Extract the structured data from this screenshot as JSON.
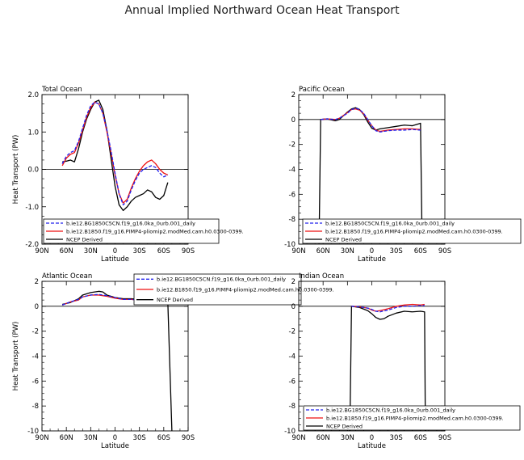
{
  "title": "Annual Implied Northward Ocean Heat Transport",
  "chart_data": [
    {
      "type": "line",
      "title": "Total Ocean",
      "xlabel": "Latitude",
      "ylabel": "Heat Transport (PW)",
      "x_ticks": [
        "90N",
        "60N",
        "30N",
        "0",
        "30S",
        "60S",
        "90S"
      ],
      "y_ticks": [
        "2.0",
        "1.0",
        "0.0",
        "-1.0",
        "-2.0"
      ],
      "xlim": [
        90,
        -90
      ],
      "ylim": [
        -2,
        2
      ],
      "legend": [
        "b.ie12.BG1850C5CN.f19_g16.0ka_0urb.001_daily",
        "b.ie12.B1850.f19_g16.PIMP4-pliomip2.modMed.cam.h0.0300-0399.",
        "NCEP Derived"
      ],
      "legend_position": "bottom",
      "series": [
        {
          "color": "#2222ee",
          "dash": true,
          "points": [
            [
              65,
              0.15
            ],
            [
              60,
              0.35
            ],
            [
              55,
              0.45
            ],
            [
              50,
              0.5
            ],
            [
              45,
              0.75
            ],
            [
              40,
              1.1
            ],
            [
              35,
              1.45
            ],
            [
              30,
              1.7
            ],
            [
              25,
              1.8
            ],
            [
              20,
              1.75
            ],
            [
              15,
              1.5
            ],
            [
              10,
              1.05
            ],
            [
              5,
              0.5
            ],
            [
              0,
              -0.1
            ],
            [
              -5,
              -0.65
            ],
            [
              -10,
              -0.95
            ],
            [
              -15,
              -0.85
            ],
            [
              -20,
              -0.55
            ],
            [
              -25,
              -0.3
            ],
            [
              -30,
              -0.1
            ],
            [
              -35,
              0.0
            ],
            [
              -40,
              0.05
            ],
            [
              -45,
              0.1
            ],
            [
              -50,
              0.05
            ],
            [
              -55,
              -0.1
            ],
            [
              -60,
              -0.2
            ],
            [
              -65,
              -0.15
            ]
          ]
        },
        {
          "color": "#ee1111",
          "dash": false,
          "points": [
            [
              65,
              0.1
            ],
            [
              60,
              0.3
            ],
            [
              55,
              0.4
            ],
            [
              50,
              0.45
            ],
            [
              45,
              0.7
            ],
            [
              40,
              1.05
            ],
            [
              35,
              1.4
            ],
            [
              30,
              1.65
            ],
            [
              25,
              1.8
            ],
            [
              20,
              1.75
            ],
            [
              15,
              1.5
            ],
            [
              10,
              1.0
            ],
            [
              5,
              0.45
            ],
            [
              0,
              -0.15
            ],
            [
              -5,
              -0.65
            ],
            [
              -10,
              -0.9
            ],
            [
              -15,
              -0.8
            ],
            [
              -20,
              -0.5
            ],
            [
              -25,
              -0.25
            ],
            [
              -30,
              -0.05
            ],
            [
              -35,
              0.1
            ],
            [
              -40,
              0.2
            ],
            [
              -45,
              0.25
            ],
            [
              -50,
              0.15
            ],
            [
              -55,
              0.0
            ],
            [
              -60,
              -0.1
            ],
            [
              -65,
              -0.15
            ]
          ]
        },
        {
          "color": "#000000",
          "dash": false,
          "points": [
            [
              65,
              0.2
            ],
            [
              60,
              0.22
            ],
            [
              55,
              0.25
            ],
            [
              50,
              0.2
            ],
            [
              45,
              0.55
            ],
            [
              40,
              1.0
            ],
            [
              35,
              1.35
            ],
            [
              30,
              1.6
            ],
            [
              25,
              1.8
            ],
            [
              20,
              1.85
            ],
            [
              15,
              1.6
            ],
            [
              10,
              1.05
            ],
            [
              5,
              0.3
            ],
            [
              0,
              -0.45
            ],
            [
              -5,
              -0.95
            ],
            [
              -10,
              -1.1
            ],
            [
              -15,
              -1.0
            ],
            [
              -20,
              -0.85
            ],
            [
              -25,
              -0.75
            ],
            [
              -30,
              -0.7
            ],
            [
              -35,
              -0.65
            ],
            [
              -40,
              -0.55
            ],
            [
              -45,
              -0.6
            ],
            [
              -50,
              -0.75
            ],
            [
              -55,
              -0.8
            ],
            [
              -60,
              -0.7
            ],
            [
              -65,
              -0.35
            ]
          ]
        }
      ]
    },
    {
      "type": "line",
      "title": "Pacific Ocean",
      "xlabel": "Latitude",
      "ylabel": "",
      "x_ticks": [
        "90N",
        "60N",
        "30N",
        "0",
        "30S",
        "60S",
        "90S"
      ],
      "y_ticks": [
        "2",
        "0",
        "-2",
        "-4",
        "-6",
        "-8",
        "-10"
      ],
      "xlim": [
        90,
        -90
      ],
      "ylim": [
        -10,
        2
      ],
      "legend": [
        "b.ie12.BG1850C5CN.f19_g16.0ka_0urb.001_daily",
        "b.ie12.B1850.f19_g16.PIMP4-pliomip2.modMed.cam.h0.0300-0399.",
        "NCEP Derived"
      ],
      "legend_position": "bottom",
      "series": [
        {
          "color": "#2222ee",
          "dash": true,
          "points": [
            [
              63,
              0.0
            ],
            [
              55,
              0.05
            ],
            [
              45,
              0.0
            ],
            [
              40,
              0.1
            ],
            [
              30,
              0.5
            ],
            [
              25,
              0.8
            ],
            [
              20,
              0.9
            ],
            [
              15,
              0.8
            ],
            [
              10,
              0.5
            ],
            [
              5,
              0.0
            ],
            [
              0,
              -0.5
            ],
            [
              -5,
              -0.9
            ],
            [
              -10,
              -1.0
            ],
            [
              -20,
              -0.9
            ],
            [
              -30,
              -0.85
            ],
            [
              -40,
              -0.85
            ],
            [
              -50,
              -0.8
            ],
            [
              -60,
              -0.85
            ]
          ]
        },
        {
          "color": "#ee1111",
          "dash": false,
          "points": [
            [
              63,
              0.0
            ],
            [
              55,
              0.05
            ],
            [
              45,
              0.0
            ],
            [
              40,
              0.1
            ],
            [
              30,
              0.55
            ],
            [
              25,
              0.8
            ],
            [
              20,
              0.85
            ],
            [
              15,
              0.75
            ],
            [
              10,
              0.45
            ],
            [
              5,
              -0.05
            ],
            [
              0,
              -0.5
            ],
            [
              -5,
              -0.85
            ],
            [
              -10,
              -0.95
            ],
            [
              -20,
              -0.85
            ],
            [
              -30,
              -0.8
            ],
            [
              -40,
              -0.75
            ],
            [
              -50,
              -0.75
            ],
            [
              -60,
              -0.8
            ]
          ]
        },
        {
          "color": "#000000",
          "dash": false,
          "points": [
            [
              65,
              -10
            ],
            [
              63,
              0.0
            ],
            [
              55,
              0.05
            ],
            [
              45,
              -0.1
            ],
            [
              40,
              0.0
            ],
            [
              30,
              0.6
            ],
            [
              25,
              0.85
            ],
            [
              20,
              0.95
            ],
            [
              15,
              0.8
            ],
            [
              10,
              0.4
            ],
            [
              5,
              -0.2
            ],
            [
              0,
              -0.7
            ],
            [
              -5,
              -0.85
            ],
            [
              -10,
              -0.75
            ],
            [
              -20,
              -0.65
            ],
            [
              -30,
              -0.55
            ],
            [
              -40,
              -0.45
            ],
            [
              -50,
              -0.5
            ],
            [
              -60,
              -0.3
            ],
            [
              -62,
              -10
            ]
          ]
        }
      ]
    },
    {
      "type": "line",
      "title": "Atlantic Ocean",
      "xlabel": "Latitude",
      "ylabel": "Heat Transport (PW)",
      "x_ticks": [
        "90N",
        "60N",
        "30N",
        "0",
        "30S",
        "60S",
        "90S"
      ],
      "y_ticks": [
        "2",
        "0",
        "-2",
        "-4",
        "-6",
        "-8",
        "-10"
      ],
      "xlim": [
        90,
        -90
      ],
      "ylim": [
        -10,
        2
      ],
      "legend": [
        "b.ie12.BG1850C5CN.f19_g16.0ka_0urb.001_daily",
        "b.ie12.B1850.f19_g16.PIMP4-pliomip2.modMed.cam.h0.0300-0399.",
        "NCEP Derived"
      ],
      "legend_position": "top-right",
      "series": [
        {
          "color": "#2222ee",
          "dash": true,
          "points": [
            [
              65,
              0.1
            ],
            [
              55,
              0.35
            ],
            [
              45,
              0.55
            ],
            [
              40,
              0.75
            ],
            [
              30,
              0.9
            ],
            [
              20,
              0.95
            ],
            [
              10,
              0.85
            ],
            [
              0,
              0.7
            ],
            [
              -10,
              0.55
            ],
            [
              -20,
              0.55
            ],
            [
              -30,
              0.5
            ],
            [
              -40,
              0.45
            ],
            [
              -50,
              0.4
            ],
            [
              -60,
              0.35
            ],
            [
              -65,
              0.35
            ]
          ]
        },
        {
          "color": "#ee1111",
          "dash": false,
          "points": [
            [
              65,
              0.1
            ],
            [
              55,
              0.35
            ],
            [
              45,
              0.5
            ],
            [
              40,
              0.75
            ],
            [
              30,
              0.9
            ],
            [
              20,
              0.9
            ],
            [
              10,
              0.8
            ],
            [
              0,
              0.65
            ],
            [
              -10,
              0.55
            ],
            [
              -20,
              0.55
            ],
            [
              -30,
              0.5
            ],
            [
              -40,
              0.45
            ],
            [
              -50,
              0.4
            ],
            [
              -60,
              0.35
            ],
            [
              -65,
              0.3
            ]
          ]
        },
        {
          "color": "#000000",
          "dash": false,
          "points": [
            [
              65,
              0.15
            ],
            [
              55,
              0.3
            ],
            [
              45,
              0.6
            ],
            [
              40,
              0.9
            ],
            [
              30,
              1.1
            ],
            [
              20,
              1.2
            ],
            [
              15,
              1.15
            ],
            [
              10,
              0.9
            ],
            [
              0,
              0.7
            ],
            [
              -10,
              0.6
            ],
            [
              -20,
              0.6
            ],
            [
              -30,
              0.55
            ],
            [
              -40,
              0.45
            ],
            [
              -50,
              0.35
            ],
            [
              -60,
              0.3
            ],
            [
              -65,
              0.3
            ],
            [
              -70,
              -10
            ]
          ]
        }
      ]
    },
    {
      "type": "line",
      "title": "Indian Ocean",
      "xlabel": "Latitude",
      "ylabel": "",
      "x_ticks": [
        "90N",
        "60N",
        "30N",
        "0",
        "30S",
        "60S",
        "90S"
      ],
      "y_ticks": [
        "2",
        "0",
        "-2",
        "-4",
        "-6",
        "-8",
        "-10"
      ],
      "xlim": [
        90,
        -90
      ],
      "ylim": [
        -10,
        2
      ],
      "legend": [
        "b.ie12.BG1850C5CN.f19_g16.0ka_0urb.001_daily",
        "b.ie12.B1850.f19_g16.PIMP4-pliomip2.modMed.cam.h0.0300-0399.",
        "NCEP Derived"
      ],
      "legend_position": "bottom-right",
      "series": [
        {
          "color": "#2222ee",
          "dash": true,
          "points": [
            [
              25,
              0.0
            ],
            [
              15,
              -0.05
            ],
            [
              5,
              -0.15
            ],
            [
              0,
              -0.25
            ],
            [
              -5,
              -0.4
            ],
            [
              -10,
              -0.45
            ],
            [
              -20,
              -0.3
            ],
            [
              -30,
              -0.1
            ],
            [
              -40,
              0.0
            ],
            [
              -50,
              0.0
            ],
            [
              -60,
              0.05
            ],
            [
              -65,
              0.05
            ]
          ]
        },
        {
          "color": "#ee1111",
          "dash": false,
          "points": [
            [
              25,
              0.0
            ],
            [
              15,
              -0.05
            ],
            [
              5,
              -0.15
            ],
            [
              0,
              -0.3
            ],
            [
              -5,
              -0.4
            ],
            [
              -10,
              -0.35
            ],
            [
              -20,
              -0.2
            ],
            [
              -30,
              0.0
            ],
            [
              -40,
              0.1
            ],
            [
              -50,
              0.15
            ],
            [
              -60,
              0.1
            ],
            [
              -65,
              0.15
            ]
          ]
        },
        {
          "color": "#000000",
          "dash": false,
          "points": [
            [
              27,
              -10
            ],
            [
              25,
              0.0
            ],
            [
              15,
              -0.1
            ],
            [
              5,
              -0.35
            ],
            [
              0,
              -0.6
            ],
            [
              -5,
              -0.9
            ],
            [
              -10,
              -1.05
            ],
            [
              -15,
              -1.0
            ],
            [
              -20,
              -0.8
            ],
            [
              -30,
              -0.55
            ],
            [
              -40,
              -0.4
            ],
            [
              -50,
              -0.45
            ],
            [
              -60,
              -0.4
            ],
            [
              -65,
              -0.45
            ],
            [
              -66,
              -10
            ]
          ]
        }
      ]
    }
  ]
}
